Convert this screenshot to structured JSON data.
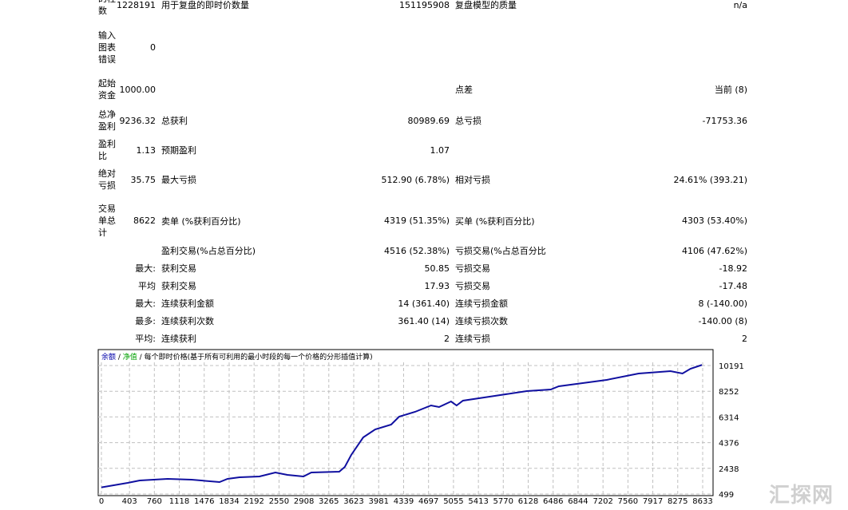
{
  "report": {
    "rows": [
      {
        "label": "的柱数",
        "value": "1228191",
        "label2": "用于复盘的即时价数量",
        "value2": "151195908",
        "label3": "复盘模型的质量",
        "value3": "n/a"
      },
      {
        "label": "输入图表错误",
        "value": "0"
      },
      {
        "label": "起始资金",
        "value": "1000.00",
        "label3": "点差",
        "value3": "当前 (8)"
      },
      {
        "label": "总净盈利",
        "value": "9236.32",
        "label2": "总获利",
        "value2": "80989.69",
        "label3": "总亏损",
        "value3": "-71753.36"
      },
      {
        "label": "盈利比",
        "value": "1.13",
        "label2": "预期盈利",
        "value2": "1.07"
      },
      {
        "label": "绝对亏损",
        "value": "35.75",
        "label2": "最大亏损",
        "value2": "512.90 (6.78%)",
        "label3": "相对亏损",
        "value3": "24.61% (393.21)"
      },
      {
        "label": "交易单总计",
        "value": "8622",
        "label2": "卖单 (%获利百分比)",
        "value2": "4319 (51.35%)",
        "label3": "买单 (%获利百分比)",
        "value3": "4303 (53.40%)"
      },
      {
        "sub": "",
        "label2": "盈利交易(%占总百分比)",
        "value2": "4516 (52.38%)",
        "label3": "亏损交易(%占总百分比",
        "value3": "4106 (47.62%)"
      },
      {
        "sub": "最大:",
        "label2": "获利交易",
        "value2": "50.85",
        "label3": "亏损交易",
        "value3": "-18.92"
      },
      {
        "sub": "平均",
        "label2": "获利交易",
        "value2": "17.93",
        "label3": "亏损交易",
        "value3": "-17.48"
      },
      {
        "sub": "最大:",
        "label2": "连续获利金额",
        "value2": "14 (361.40)",
        "label3": "连续亏损金额",
        "value3": "8 (-140.00)"
      },
      {
        "sub": "最多:",
        "label2": "连续获利次数",
        "value2": "361.40 (14)",
        "label3": "连续亏损次数",
        "value3": "-140.00 (8)"
      },
      {
        "sub": "平均:",
        "label2": "连续获利",
        "value2": "2",
        "label3": "连续亏损",
        "value3": "2"
      }
    ]
  },
  "chart_data": {
    "type": "line",
    "legend": {
      "balance": "余额",
      "sep": " / ",
      "equity": "净值",
      "model": "每个即时价格(基于所有可利用的最小时段的每一个价格的分形插值计算)"
    },
    "colors": {
      "balance": "#0000aa",
      "equity": "#00a000",
      "line": "#1010a0",
      "grid": "#c0c0c0"
    },
    "grid": true,
    "xlim": [
      0,
      8633
    ],
    "ylim": [
      499,
      10191
    ],
    "x_ticks": [
      0,
      403,
      760,
      1118,
      1476,
      1834,
      2192,
      2550,
      2908,
      3265,
      3623,
      3981,
      4339,
      4697,
      5055,
      5413,
      5770,
      6128,
      6486,
      6844,
      7202,
      7560,
      7917,
      8275,
      8633
    ],
    "y_ticks": [
      499,
      2438,
      4376,
      6314,
      8252,
      10191
    ],
    "series": [
      {
        "x": [
          0,
          378,
          550,
          951,
          1295,
          1696,
          1811,
          1983,
          2269,
          2498,
          2670,
          2900,
          3014,
          3415,
          3495,
          3587,
          3759,
          3931,
          4160,
          4275,
          4504,
          4733,
          4848,
          5020,
          5100,
          5191,
          5650,
          6108,
          6452,
          6567,
          6910,
          7254,
          7713,
          8171,
          8343,
          8458,
          8622
        ],
        "y": [
          1000,
          1342,
          1522,
          1643,
          1582,
          1402,
          1643,
          1763,
          1823,
          2124,
          1944,
          1823,
          2124,
          2184,
          2546,
          3449,
          4773,
          5375,
          5736,
          6338,
          6700,
          7181,
          7061,
          7482,
          7181,
          7542,
          7904,
          8265,
          8385,
          8626,
          8867,
          9108,
          9589,
          9770,
          9589,
          9950,
          10236
        ]
      }
    ]
  },
  "watermark": "汇探网"
}
